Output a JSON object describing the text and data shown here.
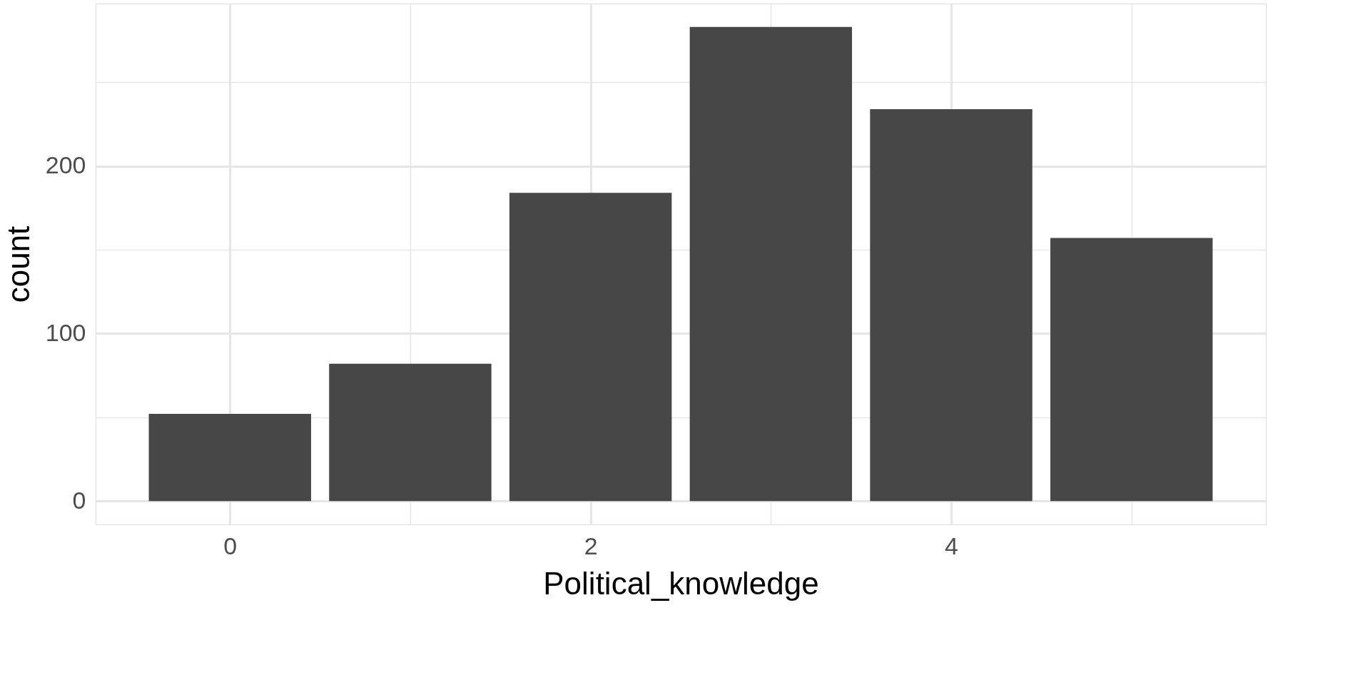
{
  "chart_data": {
    "type": "bar",
    "xlabel": "Political_knowledge",
    "ylabel": "count",
    "x": [
      0,
      1,
      2,
      3,
      4,
      5
    ],
    "values": [
      52,
      82,
      184,
      283,
      234,
      157
    ],
    "color": "#474747",
    "xlim": [
      -0.745,
      5.745
    ],
    "ylim": [
      -14,
      297
    ],
    "xticks": [
      0,
      {
        "value": 1,
        "label": null
      },
      2,
      {
        "value": 3,
        "label": null
      },
      4,
      {
        "value": 5,
        "label": null
      }
    ],
    "yticks": [
      0,
      {
        "value": 50,
        "label": null
      },
      100,
      {
        "value": 150,
        "label": null
      },
      200,
      {
        "value": 250,
        "label": null
      }
    ],
    "grid": true
  }
}
